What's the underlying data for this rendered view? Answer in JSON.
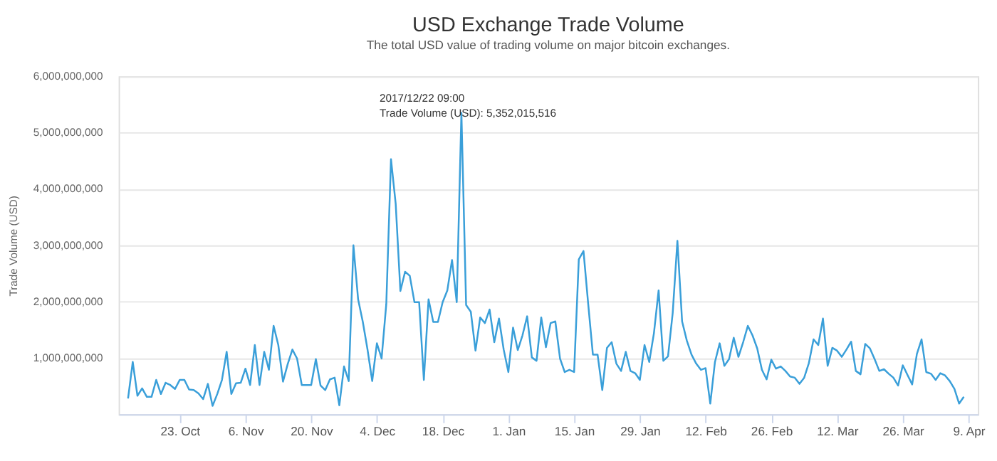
{
  "chart_data": {
    "type": "line",
    "title": "USD Exchange Trade Volume",
    "subtitle": "The total USD value of trading volume on major bitcoin exchanges.",
    "ylabel": "Trade Volume (USD)",
    "x": [
      "2017-10-12",
      "2017-10-13",
      "2017-10-14",
      "2017-10-15",
      "2017-10-16",
      "2017-10-17",
      "2017-10-18",
      "2017-10-19",
      "2017-10-20",
      "2017-10-21",
      "2017-10-22",
      "2017-10-23",
      "2017-10-24",
      "2017-10-25",
      "2017-10-26",
      "2017-10-27",
      "2017-10-28",
      "2017-10-29",
      "2017-10-30",
      "2017-10-31",
      "2017-11-01",
      "2017-11-02",
      "2017-11-03",
      "2017-11-04",
      "2017-11-05",
      "2017-11-06",
      "2017-11-07",
      "2017-11-08",
      "2017-11-09",
      "2017-11-10",
      "2017-11-11",
      "2017-11-12",
      "2017-11-13",
      "2017-11-14",
      "2017-11-15",
      "2017-11-16",
      "2017-11-17",
      "2017-11-18",
      "2017-11-19",
      "2017-11-20",
      "2017-11-21",
      "2017-11-22",
      "2017-11-23",
      "2017-11-24",
      "2017-11-25",
      "2017-11-26",
      "2017-11-27",
      "2017-11-28",
      "2017-11-29",
      "2017-11-30",
      "2017-12-01",
      "2017-12-02",
      "2017-12-03",
      "2017-12-04",
      "2017-12-05",
      "2017-12-06",
      "2017-12-07",
      "2017-12-08",
      "2017-12-09",
      "2017-12-10",
      "2017-12-11",
      "2017-12-12",
      "2017-12-13",
      "2017-12-14",
      "2017-12-15",
      "2017-12-16",
      "2017-12-17",
      "2017-12-18",
      "2017-12-19",
      "2017-12-20",
      "2017-12-21",
      "2017-12-22",
      "2017-12-23",
      "2017-12-24",
      "2017-12-25",
      "2017-12-26",
      "2017-12-27",
      "2017-12-28",
      "2017-12-29",
      "2017-12-30",
      "2017-12-31",
      "2018-01-01",
      "2018-01-02",
      "2018-01-03",
      "2018-01-04",
      "2018-01-05",
      "2018-01-06",
      "2018-01-07",
      "2018-01-08",
      "2018-01-09",
      "2018-01-10",
      "2018-01-11",
      "2018-01-12",
      "2018-01-13",
      "2018-01-14",
      "2018-01-15",
      "2018-01-16",
      "2018-01-17",
      "2018-01-18",
      "2018-01-19",
      "2018-01-20",
      "2018-01-21",
      "2018-01-22",
      "2018-01-23",
      "2018-01-24",
      "2018-01-25",
      "2018-01-26",
      "2018-01-27",
      "2018-01-28",
      "2018-01-29",
      "2018-01-30",
      "2018-01-31",
      "2018-02-01",
      "2018-02-02",
      "2018-02-03",
      "2018-02-04",
      "2018-02-05",
      "2018-02-06",
      "2018-02-07",
      "2018-02-08",
      "2018-02-09",
      "2018-02-10",
      "2018-02-11",
      "2018-02-12",
      "2018-02-13",
      "2018-02-14",
      "2018-02-15",
      "2018-02-16",
      "2018-02-17",
      "2018-02-18",
      "2018-02-19",
      "2018-02-20",
      "2018-02-21",
      "2018-02-22",
      "2018-02-23",
      "2018-02-24",
      "2018-02-25",
      "2018-02-26",
      "2018-02-27",
      "2018-02-28",
      "2018-03-01",
      "2018-03-02",
      "2018-03-03",
      "2018-03-04",
      "2018-03-05",
      "2018-03-06",
      "2018-03-07",
      "2018-03-08",
      "2018-03-09",
      "2018-03-10",
      "2018-03-11",
      "2018-03-12",
      "2018-03-13",
      "2018-03-14",
      "2018-03-15",
      "2018-03-16",
      "2018-03-17",
      "2018-03-18",
      "2018-03-19",
      "2018-03-20",
      "2018-03-21",
      "2018-03-22",
      "2018-03-23",
      "2018-03-24",
      "2018-03-25",
      "2018-03-26",
      "2018-03-27",
      "2018-03-28",
      "2018-03-29",
      "2018-03-30",
      "2018-03-31",
      "2018-04-01",
      "2018-04-02",
      "2018-04-03",
      "2018-04-04",
      "2018-04-05",
      "2018-04-06",
      "2018-04-07",
      "2018-04-08"
    ],
    "series": [
      {
        "color": "#3a9fd9",
        "values": [
          280000000,
          930000000,
          330000000,
          460000000,
          310000000,
          310000000,
          610000000,
          360000000,
          560000000,
          520000000,
          450000000,
          610000000,
          610000000,
          440000000,
          430000000,
          370000000,
          270000000,
          540000000,
          150000000,
          360000000,
          610000000,
          1110000000,
          360000000,
          550000000,
          560000000,
          810000000,
          520000000,
          1230000000,
          520000000,
          1110000000,
          790000000,
          1570000000,
          1230000000,
          580000000,
          890000000,
          1150000000,
          990000000,
          520000000,
          520000000,
          520000000,
          980000000,
          510000000,
          430000000,
          620000000,
          650000000,
          160000000,
          850000000,
          590000000,
          3000000000,
          2040000000,
          1640000000,
          1150000000,
          590000000,
          1260000000,
          990000000,
          1960000000,
          4530000000,
          3740000000,
          2190000000,
          2530000000,
          2460000000,
          1990000000,
          1990000000,
          610000000,
          2040000000,
          1640000000,
          1640000000,
          1990000000,
          2200000000,
          2740000000,
          1990000000,
          5352015516,
          1940000000,
          1820000000,
          1130000000,
          1720000000,
          1620000000,
          1860000000,
          1280000000,
          1700000000,
          1150000000,
          750000000,
          1540000000,
          1140000000,
          1400000000,
          1740000000,
          1010000000,
          950000000,
          1720000000,
          1190000000,
          1620000000,
          1650000000,
          990000000,
          750000000,
          790000000,
          750000000,
          2750000000,
          2900000000,
          1960000000,
          1060000000,
          1060000000,
          430000000,
          1180000000,
          1280000000,
          900000000,
          770000000,
          1110000000,
          770000000,
          730000000,
          610000000,
          1230000000,
          930000000,
          1440000000,
          2200000000,
          950000000,
          1030000000,
          1800000000,
          3080000000,
          1650000000,
          1310000000,
          1060000000,
          900000000,
          790000000,
          820000000,
          190000000,
          930000000,
          1260000000,
          860000000,
          980000000,
          1360000000,
          1020000000,
          1280000000,
          1570000000,
          1400000000,
          1170000000,
          790000000,
          620000000,
          970000000,
          810000000,
          850000000,
          770000000,
          670000000,
          650000000,
          540000000,
          650000000,
          910000000,
          1330000000,
          1230000000,
          1700000000,
          860000000,
          1180000000,
          1130000000,
          1020000000,
          1150000000,
          1290000000,
          770000000,
          710000000,
          1250000000,
          1170000000,
          980000000,
          770000000,
          800000000,
          720000000,
          650000000,
          510000000,
          870000000,
          700000000,
          530000000,
          1070000000,
          1330000000,
          750000000,
          720000000,
          610000000,
          730000000,
          690000000,
          590000000,
          450000000,
          190000000,
          310000000
        ]
      }
    ],
    "xlim": [
      "2017-10-10",
      "2018-04-11"
    ],
    "xticks": [
      {
        "value": "2017-10-23",
        "label": "23. Oct"
      },
      {
        "value": "2017-11-06",
        "label": "6. Nov"
      },
      {
        "value": "2017-11-20",
        "label": "20. Nov"
      },
      {
        "value": "2017-12-04",
        "label": "4. Dec"
      },
      {
        "value": "2017-12-18",
        "label": "18. Dec"
      },
      {
        "value": "2018-01-01",
        "label": "1. Jan"
      },
      {
        "value": "2018-01-15",
        "label": "15. Jan"
      },
      {
        "value": "2018-01-29",
        "label": "29. Jan"
      },
      {
        "value": "2018-02-12",
        "label": "12. Feb"
      },
      {
        "value": "2018-02-26",
        "label": "26. Feb"
      },
      {
        "value": "2018-03-12",
        "label": "12. Mar"
      },
      {
        "value": "2018-03-26",
        "label": "26. Mar"
      },
      {
        "value": "2018-04-09",
        "label": "9. Apr"
      }
    ],
    "ylim": [
      0,
      6000000000
    ],
    "yticks": [
      {
        "value": 1000000000,
        "label": "1,000,000,000"
      },
      {
        "value": 2000000000,
        "label": "2,000,000,000"
      },
      {
        "value": 3000000000,
        "label": "3,000,000,000"
      },
      {
        "value": 4000000000,
        "label": "4,000,000,000"
      },
      {
        "value": 5000000000,
        "label": "5,000,000,000"
      },
      {
        "value": 6000000000,
        "label": "6,000,000,000"
      }
    ],
    "grid": "y",
    "marker": "none",
    "line_style": "solid",
    "annotations": [
      {
        "text": "2017/12/22 09:00\nTrade Volume (USD): 5,352,015,516",
        "x": "2017-12-22",
        "y": 5352015516
      }
    ]
  }
}
